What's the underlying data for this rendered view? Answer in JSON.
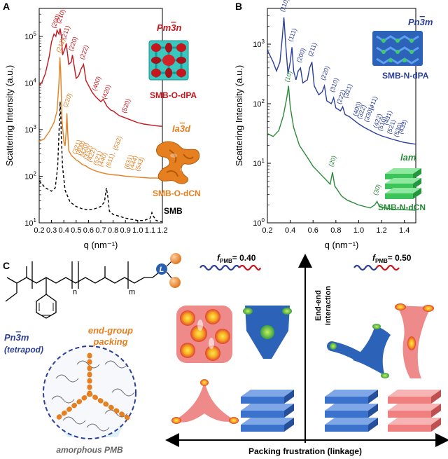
{
  "panels": {
    "A": {
      "letter": "A"
    },
    "B": {
      "letter": "B"
    },
    "C": {
      "letter": "C"
    }
  },
  "colors": {
    "red": "#c4161c",
    "orange": "#e57f1f",
    "blue": "#2b3f99",
    "green": "#2a8a3a",
    "black": "#000000",
    "tetrapod_blue": "#2c63b8",
    "pink": "#ef8a8a",
    "lam_green": "#3cc35a",
    "lam_blue": "#3b72cc",
    "lam_pink": "#f08080"
  },
  "chart_data": [
    {
      "type": "line",
      "panel": "A",
      "xlabel": "q (nm⁻¹)",
      "ylabel": "Scattering Intensity (a.u.)",
      "xlim": [
        0.2,
        1.2
      ],
      "ylim_log10": [
        1,
        5.6
      ],
      "yscale": "log",
      "xticks": [
        "0.2",
        "0.3",
        "0.4",
        "0.5",
        "0.6",
        "0.7",
        "0.8",
        "0.9",
        "1.0",
        "1.1",
        "1.2"
      ],
      "yticks": [
        {
          "base": "10",
          "exp": "1"
        },
        {
          "base": "10",
          "exp": "2"
        },
        {
          "base": "10",
          "exp": "3"
        },
        {
          "base": "10",
          "exp": "4"
        },
        {
          "base": "10",
          "exp": "5"
        }
      ],
      "series": [
        {
          "name": "SMB-O-dPA",
          "color": "#c4161c",
          "style": "solid",
          "phase": "Pm3̄n",
          "phase_base": "Pm",
          "phase_over": "3",
          "phase_tail": "n",
          "points": [
            [
              0.2,
              3.95
            ],
            [
              0.22,
              4.0
            ],
            [
              0.25,
              4.2
            ],
            [
              0.28,
              4.55
            ],
            [
              0.3,
              4.88
            ],
            [
              0.32,
              5.05
            ],
            [
              0.335,
              5.0
            ],
            [
              0.345,
              5.13
            ],
            [
              0.36,
              5.05
            ],
            [
              0.37,
              5.17
            ],
            [
              0.38,
              5.0
            ],
            [
              0.39,
              4.6
            ],
            [
              0.41,
              4.75
            ],
            [
              0.42,
              4.85
            ],
            [
              0.44,
              4.4
            ],
            [
              0.46,
              4.45
            ],
            [
              0.47,
              4.6
            ],
            [
              0.5,
              4.1
            ],
            [
              0.52,
              4.15
            ],
            [
              0.54,
              4.3
            ],
            [
              0.56,
              4.4
            ],
            [
              0.58,
              4.05
            ],
            [
              0.6,
              3.95
            ],
            [
              0.63,
              3.8
            ],
            [
              0.66,
              3.7
            ],
            [
              0.7,
              3.6
            ],
            [
              0.72,
              3.65
            ],
            [
              0.75,
              3.5
            ],
            [
              0.78,
              3.42
            ],
            [
              0.8,
              3.4
            ],
            [
              0.85,
              3.3
            ],
            [
              0.9,
              3.25
            ],
            [
              0.95,
              3.2
            ],
            [
              1.0,
              3.15
            ],
            [
              1.05,
              3.12
            ],
            [
              1.1,
              3.1
            ],
            [
              1.15,
              3.08
            ],
            [
              1.2,
              3.07
            ]
          ],
          "peaks": [
            {
              "label": "(200)",
              "q": 0.33,
              "y": 5.12
            },
            {
              "label": "(210)",
              "q": 0.37,
              "y": 5.22
            },
            {
              "label": "(211)",
              "q": 0.41,
              "y": 4.88
            },
            {
              "label": "(220)",
              "q": 0.47,
              "y": 4.63
            },
            {
              "label": "(222)",
              "q": 0.56,
              "y": 4.45
            },
            {
              "label": "(400)",
              "q": 0.66,
              "y": 3.78
            },
            {
              "label": "(420)",
              "q": 0.74,
              "y": 3.6
            },
            {
              "label": "(520)",
              "q": 0.9,
              "y": 3.3
            }
          ]
        },
        {
          "name": "SMB-O-dCN",
          "color": "#e57f1f",
          "style": "solid",
          "phase": "Ia3̄d",
          "phase_base": "Ia",
          "phase_over": "3",
          "phase_tail": "d",
          "points": [
            [
              0.2,
              2.75
            ],
            [
              0.24,
              2.8
            ],
            [
              0.28,
              2.95
            ],
            [
              0.32,
              3.15
            ],
            [
              0.345,
              3.4
            ],
            [
              0.36,
              4.0
            ],
            [
              0.368,
              4.55
            ],
            [
              0.375,
              4.2
            ],
            [
              0.385,
              3.2
            ],
            [
              0.4,
              2.75
            ],
            [
              0.41,
              2.65
            ],
            [
              0.42,
              3.0
            ],
            [
              0.425,
              3.35
            ],
            [
              0.43,
              3.0
            ],
            [
              0.44,
              2.55
            ],
            [
              0.46,
              2.45
            ],
            [
              0.5,
              2.35
            ],
            [
              0.52,
              2.32
            ],
            [
              0.55,
              2.25
            ],
            [
              0.58,
              2.22
            ],
            [
              0.6,
              2.18
            ],
            [
              0.65,
              2.12
            ],
            [
              0.7,
              2.08
            ],
            [
              0.75,
              2.05
            ],
            [
              0.8,
              2.03
            ],
            [
              0.85,
              2.02
            ],
            [
              0.9,
              2.0
            ],
            [
              0.95,
              1.99
            ],
            [
              1.0,
              1.98
            ],
            [
              1.05,
              1.97
            ],
            [
              1.1,
              1.96
            ],
            [
              1.15,
              1.96
            ],
            [
              1.2,
              1.95
            ]
          ],
          "peaks": [
            {
              "label": "(211)",
              "q": 0.37,
              "y": 4.6
            },
            {
              "label": "(220)",
              "q": 0.425,
              "y": 3.42
            },
            {
              "label": "(321)",
              "q": 0.5,
              "y": 2.42
            },
            {
              "label": "(400)",
              "q": 0.53,
              "y": 2.4
            },
            {
              "label": "(420)",
              "q": 0.56,
              "y": 2.36
            },
            {
              "label": "(332)",
              "q": 0.59,
              "y": 2.3
            },
            {
              "label": "(422)",
              "q": 0.62,
              "y": 2.25
            },
            {
              "label": "(521)",
              "q": 0.67,
              "y": 2.18
            },
            {
              "label": "(440)",
              "q": 0.71,
              "y": 2.15
            },
            {
              "label": "(611),",
              "q": 0.77,
              "y": 2.13
            },
            {
              "label": "(532)",
              "q": 0.83,
              "y": 2.5
            },
            {
              "label": "(631)",
              "q": 0.92,
              "y": 2.1
            },
            {
              "label": "(444)",
              "q": 0.96,
              "y": 2.08
            },
            {
              "label": "(543)",
              "q": 1.01,
              "y": 2.05
            }
          ]
        },
        {
          "name": "SMB",
          "color": "#000000",
          "style": "dashed",
          "points": [
            [
              0.2,
              1.9
            ],
            [
              0.25,
              1.75
            ],
            [
              0.3,
              1.68
            ],
            [
              0.33,
              1.75
            ],
            [
              0.35,
              2.2
            ],
            [
              0.36,
              2.9
            ],
            [
              0.37,
              3.6
            ],
            [
              0.375,
              3.3
            ],
            [
              0.38,
              2.8
            ],
            [
              0.39,
              2.2
            ],
            [
              0.41,
              1.7
            ],
            [
              0.45,
              1.45
            ],
            [
              0.5,
              1.35
            ],
            [
              0.55,
              1.3
            ],
            [
              0.6,
              1.28
            ],
            [
              0.65,
              1.3
            ],
            [
              0.7,
              1.35
            ],
            [
              0.73,
              1.45
            ],
            [
              0.745,
              1.75
            ],
            [
              0.755,
              1.6
            ],
            [
              0.77,
              1.25
            ],
            [
              0.8,
              1.18
            ],
            [
              0.9,
              1.1
            ],
            [
              1.0,
              1.05
            ],
            [
              1.05,
              1.05
            ],
            [
              1.1,
              1.1
            ],
            [
              1.115,
              1.22
            ],
            [
              1.125,
              1.15
            ],
            [
              1.15,
              1.05
            ],
            [
              1.2,
              1.02
            ]
          ]
        }
      ]
    },
    {
      "type": "line",
      "panel": "B",
      "xlabel": "q (nm⁻¹)",
      "ylabel": "Scattering Intensity (a.u.)",
      "xlim": [
        0.2,
        1.5
      ],
      "ylim_log10": [
        0,
        3.6
      ],
      "yscale": "log",
      "xticks": [
        "0.2",
        "0.4",
        "0.6",
        "0.8",
        "1.0",
        "1.2",
        "1.4"
      ],
      "yticks": [
        {
          "base": "10",
          "exp": "0"
        },
        {
          "base": "10",
          "exp": "1"
        },
        {
          "base": "10",
          "exp": "2"
        },
        {
          "base": "10",
          "exp": "3"
        }
      ],
      "series": [
        {
          "name": "SMB-N-dPA",
          "color": "#2b3f99",
          "style": "solid",
          "phase": "Pn3̄m",
          "phase_base": "Pn",
          "phase_over": "3",
          "phase_tail": "m",
          "points": [
            [
              0.2,
              2.9
            ],
            [
              0.25,
              2.7
            ],
            [
              0.28,
              2.55
            ],
            [
              0.31,
              2.7
            ],
            [
              0.33,
              3.1
            ],
            [
              0.345,
              3.45
            ],
            [
              0.36,
              3.0
            ],
            [
              0.38,
              2.5
            ],
            [
              0.4,
              2.7
            ],
            [
              0.415,
              2.95
            ],
            [
              0.43,
              2.55
            ],
            [
              0.45,
              2.4
            ],
            [
              0.47,
              2.55
            ],
            [
              0.49,
              2.6
            ],
            [
              0.51,
              2.35
            ],
            [
              0.55,
              2.4
            ],
            [
              0.57,
              2.6
            ],
            [
              0.59,
              2.7
            ],
            [
              0.61,
              2.3
            ],
            [
              0.65,
              2.15
            ],
            [
              0.68,
              2.2
            ],
            [
              0.7,
              2.3
            ],
            [
              0.72,
              2.05
            ],
            [
              0.76,
              2.0
            ],
            [
              0.78,
              2.1
            ],
            [
              0.8,
              1.93
            ],
            [
              0.84,
              1.88
            ],
            [
              0.86,
              1.95
            ],
            [
              0.88,
              1.82
            ],
            [
              0.92,
              1.78
            ],
            [
              0.96,
              1.72
            ],
            [
              1.0,
              1.66
            ],
            [
              1.05,
              1.6
            ],
            [
              1.1,
              1.55
            ],
            [
              1.15,
              1.5
            ],
            [
              1.2,
              1.46
            ],
            [
              1.3,
              1.4
            ],
            [
              1.4,
              1.35
            ],
            [
              1.5,
              1.32
            ]
          ],
          "peaks": [
            {
              "label": "(110)",
              "q": 0.345,
              "y": 3.5
            },
            {
              "label": "(111)",
              "q": 0.415,
              "y": 3.0
            },
            {
              "label": "(200)",
              "q": 0.49,
              "y": 2.65
            },
            {
              "label": "(211)",
              "q": 0.59,
              "y": 2.75
            },
            {
              "label": "(220)",
              "q": 0.7,
              "y": 2.35
            },
            {
              "label": "(310)",
              "q": 0.78,
              "y": 2.15
            },
            {
              "label": "(222)",
              "q": 0.84,
              "y": 1.95
            },
            {
              "label": "(321)",
              "q": 0.9,
              "y": 2.05
            },
            {
              "label": "(400)",
              "q": 0.98,
              "y": 1.75
            },
            {
              "label": "(322)",
              "q": 1.02,
              "y": 1.7
            },
            {
              "label": "(330),",
              "q": 1.08,
              "y": 1.65
            },
            {
              "label": "(411)",
              "q": 1.12,
              "y": 1.85
            },
            {
              "label": "(422)",
              "q": 1.16,
              "y": 1.55
            },
            {
              "label": "(510),",
              "q": 1.2,
              "y": 1.5
            },
            {
              "label": "(431)",
              "q": 1.25,
              "y": 1.6
            },
            {
              "label": "(521)",
              "q": 1.28,
              "y": 1.45
            },
            {
              "label": "(530),",
              "q": 1.34,
              "y": 1.4
            },
            {
              "label": "(433)",
              "q": 1.38,
              "y": 1.45
            }
          ]
        },
        {
          "name": "SMB-N-dCN",
          "color": "#2a8a3a",
          "style": "solid",
          "phase": "lam",
          "points": [
            [
              0.2,
              1.5
            ],
            [
              0.25,
              1.45
            ],
            [
              0.3,
              1.55
            ],
            [
              0.34,
              1.8
            ],
            [
              0.37,
              2.1
            ],
            [
              0.385,
              2.3
            ],
            [
              0.4,
              1.95
            ],
            [
              0.43,
              1.6
            ],
            [
              0.48,
              1.3
            ],
            [
              0.55,
              1.1
            ],
            [
              0.6,
              0.95
            ],
            [
              0.7,
              0.75
            ],
            [
              0.75,
              0.65
            ],
            [
              0.77,
              0.85
            ],
            [
              0.79,
              0.62
            ],
            [
              0.85,
              0.45
            ],
            [
              0.9,
              0.38
            ],
            [
              1.0,
              0.3
            ],
            [
              1.1,
              0.25
            ],
            [
              1.14,
              0.3
            ],
            [
              1.16,
              0.36
            ],
            [
              1.18,
              0.28
            ],
            [
              1.25,
              0.24
            ],
            [
              1.3,
              0.23
            ],
            [
              1.4,
              0.22
            ],
            [
              1.5,
              0.21
            ]
          ],
          "peaks": [
            {
              "label": "(10)",
              "q": 0.385,
              "y": 2.32
            },
            {
              "label": "(20)",
              "q": 0.77,
              "y": 0.9
            },
            {
              "label": "(30)",
              "q": 1.16,
              "y": 0.42
            }
          ]
        }
      ]
    }
  ],
  "panel_c": {
    "polymer_n": "n",
    "polymer_m": "m",
    "polymer_L": "L",
    "pn3m_base": "Pn",
    "pn3m_over": "3",
    "pn3m_tail": "m",
    "tetrapod_label": "(tetrapod)",
    "end_group_line1": "end-group",
    "end_group_line2": "packing",
    "amorphous_label": "amorphous PMB",
    "f040_label": "= 0.40",
    "f050_label": "= 0.50",
    "f_symbol": "f",
    "f_subscript": "PMB",
    "y_axis_line1": "End-end",
    "y_axis_line2": "interaction",
    "x_axis_label": "Packing frustration (linkage)"
  }
}
